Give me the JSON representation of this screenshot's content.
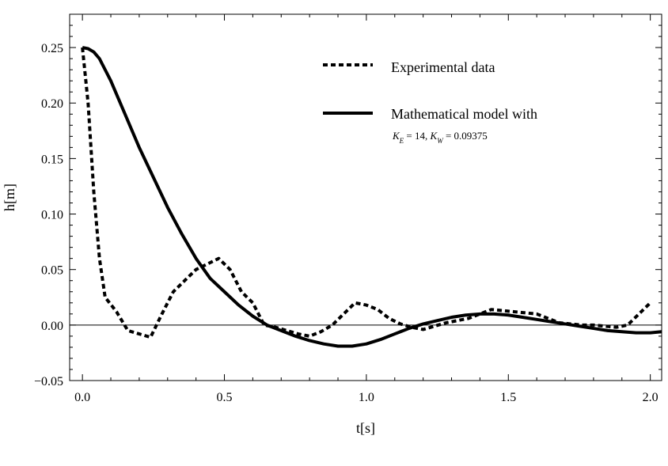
{
  "chart_data": {
    "type": "line",
    "title": "",
    "xlabel": "t[s]",
    "ylabel": "h[m]",
    "xlim": [
      -0.045,
      2.04
    ],
    "ylim": [
      -0.05,
      0.28
    ],
    "x_ticks": [
      0.0,
      0.5,
      1.0,
      1.5,
      2.0
    ],
    "x_tick_labels": [
      "0.0",
      "0.5",
      "1.0",
      "1.5",
      "2.0"
    ],
    "y_ticks": [
      -0.05,
      0.0,
      0.05,
      0.1,
      0.15,
      0.2,
      0.25
    ],
    "y_tick_labels": [
      "−0.05",
      "0.00",
      "0.05",
      "0.10",
      "0.15",
      "0.20",
      "0.25"
    ],
    "grid": false,
    "zero_line": true,
    "legend_position": "top-right",
    "series": [
      {
        "name": "Experimental data",
        "style": "dashed",
        "color": "#000000",
        "x": [
          0.0,
          0.02,
          0.04,
          0.06,
          0.08,
          0.12,
          0.16,
          0.2,
          0.24,
          0.28,
          0.32,
          0.36,
          0.4,
          0.44,
          0.48,
          0.52,
          0.56,
          0.6,
          0.64,
          0.68,
          0.72,
          0.76,
          0.8,
          0.84,
          0.88,
          0.92,
          0.96,
          1.0,
          1.04,
          1.08,
          1.12,
          1.16,
          1.2,
          1.24,
          1.28,
          1.32,
          1.36,
          1.4,
          1.44,
          1.48,
          1.52,
          1.56,
          1.6,
          1.64,
          1.68,
          1.72,
          1.76,
          1.8,
          1.84,
          1.88,
          1.92,
          1.96,
          2.0
        ],
        "y": [
          0.25,
          0.2,
          0.12,
          0.06,
          0.025,
          0.012,
          -0.005,
          -0.008,
          -0.011,
          0.01,
          0.03,
          0.04,
          0.05,
          0.055,
          0.06,
          0.05,
          0.03,
          0.02,
          0.0,
          -0.002,
          -0.005,
          -0.008,
          -0.01,
          -0.006,
          0.0,
          0.01,
          0.02,
          0.018,
          0.014,
          0.006,
          0.001,
          -0.002,
          -0.004,
          -0.001,
          0.002,
          0.004,
          0.006,
          0.01,
          0.014,
          0.013,
          0.012,
          0.011,
          0.01,
          0.006,
          0.002,
          0.001,
          0.0,
          0.0,
          -0.001,
          -0.002,
          0.0,
          0.01,
          0.02
        ]
      },
      {
        "name": "Mathematical model with",
        "name_suffix": "K_E = 14, K_W = 0.09375",
        "style": "solid",
        "color": "#000000",
        "x": [
          0.0,
          0.02,
          0.04,
          0.06,
          0.08,
          0.1,
          0.15,
          0.2,
          0.25,
          0.3,
          0.35,
          0.4,
          0.45,
          0.5,
          0.55,
          0.6,
          0.65,
          0.7,
          0.75,
          0.8,
          0.85,
          0.9,
          0.95,
          1.0,
          1.05,
          1.1,
          1.15,
          1.2,
          1.25,
          1.3,
          1.35,
          1.4,
          1.45,
          1.5,
          1.55,
          1.6,
          1.65,
          1.7,
          1.75,
          1.8,
          1.85,
          1.9,
          1.95,
          2.0,
          2.04
        ],
        "y": [
          0.25,
          0.249,
          0.246,
          0.24,
          0.23,
          0.22,
          0.19,
          0.16,
          0.133,
          0.106,
          0.082,
          0.06,
          0.042,
          0.03,
          0.018,
          0.008,
          0.0,
          -0.005,
          -0.01,
          -0.014,
          -0.017,
          -0.019,
          -0.019,
          -0.017,
          -0.013,
          -0.008,
          -0.003,
          0.001,
          0.004,
          0.007,
          0.009,
          0.01,
          0.01,
          0.009,
          0.007,
          0.005,
          0.003,
          0.001,
          -0.001,
          -0.003,
          -0.005,
          -0.006,
          -0.007,
          -0.007,
          -0.006
        ]
      }
    ]
  },
  "legend": {
    "item_1_label": "Experimental data",
    "item_2_label": "Mathematical model with",
    "item_2_sub": "K_E = 14, K_W = 0.09375"
  }
}
